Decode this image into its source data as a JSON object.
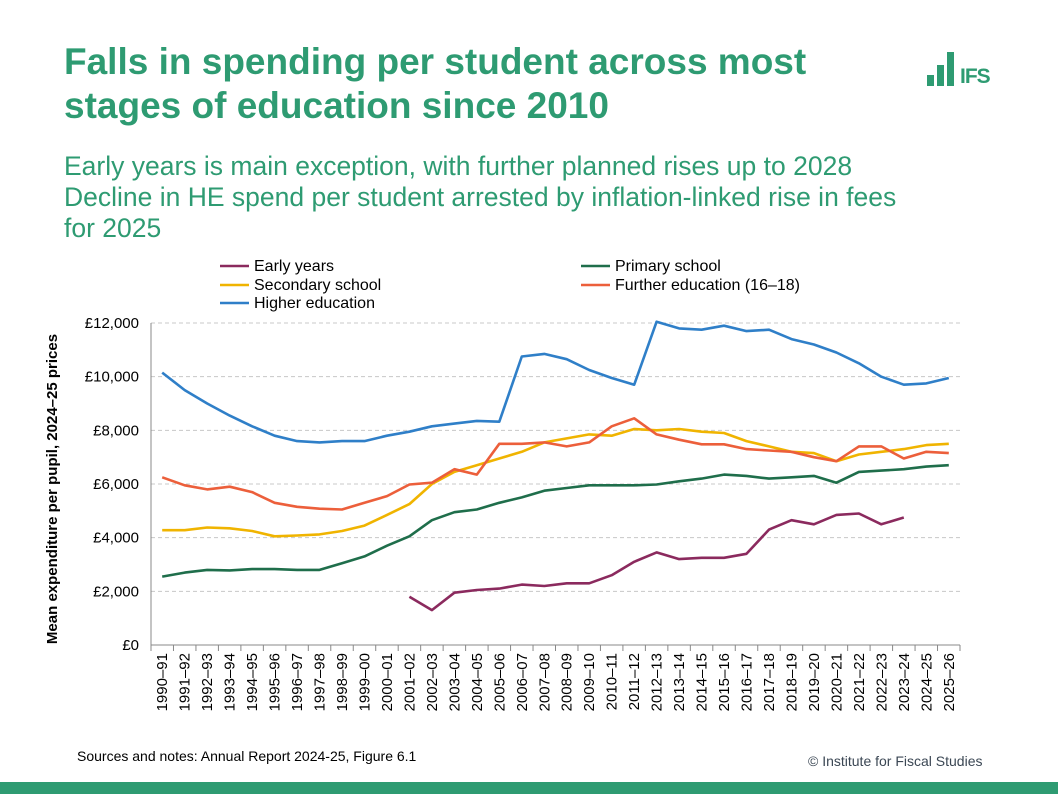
{
  "header": {
    "title": "Falls in spending per student across most stages of education since 2010",
    "subtitle_lines": [
      "Early years is main exception, with further planned rises up to 2028",
      "Decline in HE spend per student arrested by inflation-linked rise in fees",
      "for 2025"
    ],
    "logo_text": "IFS"
  },
  "footer": {
    "sources": "Sources and notes: Annual Report 2024-25, Figure 6.1",
    "copyright": "© Institute for Fiscal Studies"
  },
  "colors": {
    "brand": "#2e9b72",
    "early_years": "#8b2a5e",
    "primary": "#1f6e4b",
    "secondary": "#f0b400",
    "further": "#ec5f3b",
    "higher": "#2f7fc8"
  },
  "chart_data": {
    "type": "line",
    "ylabel": "Mean expenditure per pupil, 2024–25 prices",
    "ylim": [
      0,
      12000
    ],
    "yticks": [
      0,
      2000,
      4000,
      6000,
      8000,
      10000,
      12000
    ],
    "ytick_labels": [
      "£0",
      "£2,000",
      "£4,000",
      "£6,000",
      "£8,000",
      "£10,000",
      "£12,000"
    ],
    "grid": true,
    "legend": "top",
    "categories": [
      "1990–91",
      "1991–92",
      "1992–93",
      "1993–94",
      "1994–95",
      "1995–96",
      "1996–97",
      "1997–98",
      "1998–99",
      "1999–00",
      "2000–01",
      "2001–02",
      "2002–03",
      "2003–04",
      "2004–05",
      "2005–06",
      "2006–07",
      "2007–08",
      "2008–09",
      "2009–10",
      "2010–11",
      "2011–12",
      "2012–13",
      "2013–14",
      "2014–15",
      "2015–16",
      "2016–17",
      "2017–18",
      "2018–19",
      "2019–20",
      "2020–21",
      "2021–22",
      "2022–23",
      "2023–24",
      "2024–25",
      "2025–26"
    ],
    "series": [
      {
        "name": "Early years",
        "color": "#8b2a5e",
        "values": [
          null,
          null,
          null,
          null,
          null,
          null,
          null,
          null,
          null,
          null,
          null,
          1800,
          1300,
          1950,
          2050,
          2100,
          2250,
          2200,
          2300,
          2300,
          2600,
          3100,
          3450,
          3200,
          3250,
          3250,
          3400,
          4300,
          4650,
          4500,
          4850,
          4900,
          4500,
          4750,
          null,
          null
        ]
      },
      {
        "name": "Primary school",
        "color": "#1f6e4b",
        "values": [
          2550,
          2700,
          2800,
          2780,
          2830,
          2830,
          2800,
          2800,
          3050,
          3300,
          3700,
          4050,
          4650,
          4950,
          5050,
          5300,
          5500,
          5750,
          5850,
          5950,
          5950,
          5950,
          5980,
          6100,
          6200,
          6350,
          6300,
          6200,
          6250,
          6300,
          6050,
          6450,
          6500,
          6550,
          6650,
          6700
        ]
      },
      {
        "name": "Secondary school",
        "color": "#f0b400",
        "values": [
          4280,
          4280,
          4380,
          4350,
          4250,
          4050,
          4080,
          4120,
          4250,
          4450,
          4850,
          5250,
          6000,
          6450,
          6700,
          6950,
          7200,
          7550,
          7700,
          7850,
          7800,
          8050,
          8000,
          8050,
          7950,
          7900,
          7600,
          7400,
          7200,
          7150,
          6850,
          7100,
          7200,
          7300,
          7450,
          7500
        ]
      },
      {
        "name": "Further education (16–18)",
        "color": "#ec5f3b",
        "values": [
          6250,
          5950,
          5800,
          5900,
          5700,
          5300,
          5150,
          5080,
          5050,
          5300,
          5550,
          5980,
          6050,
          6550,
          6350,
          7500,
          7500,
          7550,
          7400,
          7550,
          8150,
          8450,
          7850,
          7650,
          7480,
          7480,
          7300,
          7250,
          7200,
          7000,
          6850,
          7400,
          7400,
          6950,
          7200,
          7150
        ]
      },
      {
        "name": "Higher education",
        "color": "#2f7fc8",
        "values": [
          10150,
          9500,
          9000,
          8550,
          8150,
          7800,
          7600,
          7550,
          7600,
          7600,
          7800,
          7950,
          8150,
          8250,
          8350,
          8320,
          10750,
          10850,
          10650,
          10250,
          9950,
          9700,
          12050,
          11800,
          11750,
          11900,
          11700,
          11750,
          11400,
          11200,
          10900,
          10500,
          10000,
          9700,
          9750,
          9950
        ]
      }
    ]
  }
}
